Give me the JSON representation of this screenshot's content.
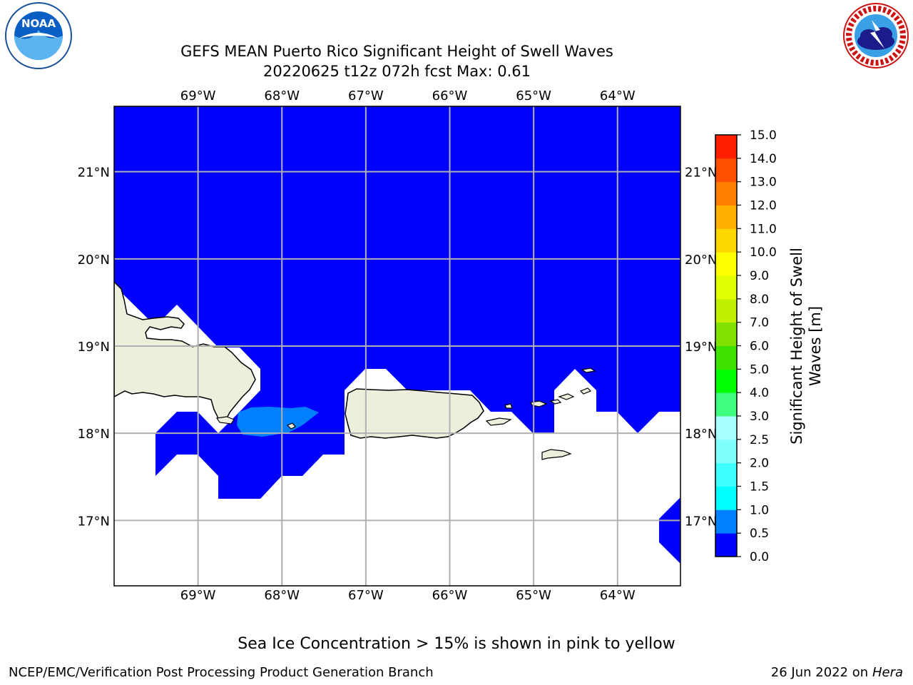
{
  "title": {
    "line1": "GEFS MEAN Puerto Rico Significant Height of Swell Waves",
    "line2": "20220625 t12z 072h fcst    Max: 0.61"
  },
  "map": {
    "lon_ticks": [
      "69°W",
      "68°W",
      "67°W",
      "66°W",
      "65°W",
      "64°W"
    ],
    "lat_ticks": [
      "21°N",
      "20°N",
      "19°N",
      "18°N",
      "17°N"
    ],
    "lon_range": [
      -70,
      -63.25
    ],
    "lat_range": [
      16.25,
      21.75
    ],
    "colors": {
      "ocean_low": "#0000ff",
      "ocean_mid": "#0080ff",
      "land": "#eeeedc",
      "grid": "#b0b0b0"
    }
  },
  "colorbar": {
    "label": "Significant Height of Swell Waves [m]",
    "ticks": [
      "0.0",
      "0.5",
      "1.0",
      "1.5",
      "2.0",
      "2.5",
      "3.0",
      "4.0",
      "5.0",
      "6.0",
      "7.0",
      "8.0",
      "9.0",
      "10.0",
      "11.0",
      "12.0",
      "13.0",
      "14.0",
      "15.0"
    ],
    "colors": [
      "#0000ff",
      "#0080ff",
      "#00ffff",
      "#40ffff",
      "#80ffff",
      "#a8ffff",
      "#40ff80",
      "#00ff00",
      "#40e000",
      "#80e000",
      "#c0f000",
      "#e0ff00",
      "#ffff00",
      "#ffd700",
      "#ffb000",
      "#ff8000",
      "#ff5000",
      "#ff2000"
    ]
  },
  "logos": {
    "noaa": "NOAA",
    "nws": "NATIONAL WEATHER SERVICE"
  },
  "footer": {
    "note": "Sea Ice Concentration > 15% is shown in pink to yellow",
    "credit": "NCEP/EMC/Verification Post Processing Product Generation Branch",
    "date": "26 Jun 2022 on",
    "host": "Hera"
  }
}
